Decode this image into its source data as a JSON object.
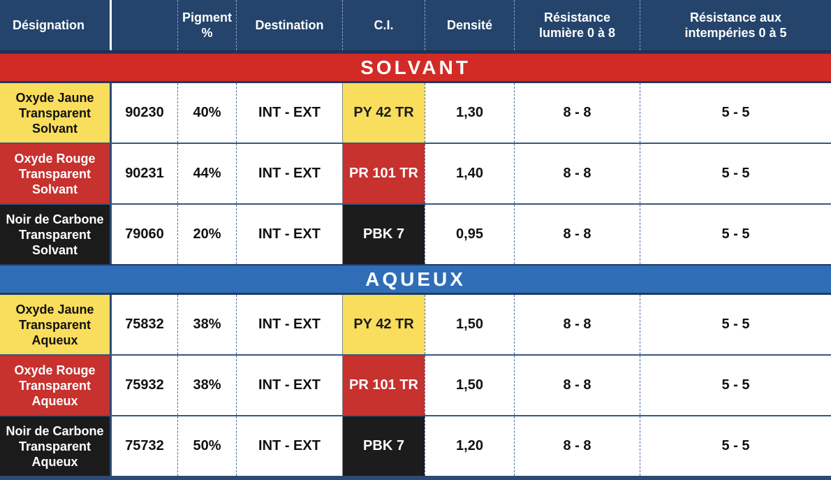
{
  "headers": {
    "designation": "Désignation",
    "code": "",
    "pigment": "Pigment\n%",
    "destination": "Destination",
    "ci": "C.I.",
    "densite": "Densité",
    "lumiere": "Résistance\nlumière 0 à 8",
    "intemperies": "Résistance aux\nintempéries 0 à 5"
  },
  "sections": [
    {
      "title": "SOLVANT",
      "color": "#d22b26",
      "rows": [
        {
          "name": "Oxyde Jaune\nTransparent\nSolvant",
          "tone": "yellow",
          "code": "90230",
          "pigment": "40%",
          "destination": "INT - EXT",
          "ci": "PY 42 TR",
          "densite": "1,30",
          "lumiere": "8 - 8",
          "intemperies": "5 - 5"
        },
        {
          "name": "Oxyde Rouge\nTransparent\nSolvant",
          "tone": "red",
          "code": "90231",
          "pigment": "44%",
          "destination": "INT - EXT",
          "ci": "PR 101 TR",
          "densite": "1,40",
          "lumiere": "8 - 8",
          "intemperies": "5 - 5"
        },
        {
          "name": "Noir de Carbone\nTransparent\nSolvant",
          "tone": "black",
          "code": "79060",
          "pigment": "20%",
          "destination": "INT - EXT",
          "ci": "PBK 7",
          "densite": "0,95",
          "lumiere": "8 - 8",
          "intemperies": "5 - 5"
        }
      ]
    },
    {
      "title": "AQUEUX",
      "color": "#2f6db6",
      "rows": [
        {
          "name": "Oxyde Jaune\nTransparent\nAqueux",
          "tone": "yellow",
          "code": "75832",
          "pigment": "38%",
          "destination": "INT - EXT",
          "ci": "PY 42 TR",
          "densite": "1,50",
          "lumiere": "8 - 8",
          "intemperies": "5 - 5"
        },
        {
          "name": "Oxyde Rouge\nTransparent\nAqueux",
          "tone": "red",
          "code": "75932",
          "pigment": "38%",
          "destination": "INT - EXT",
          "ci": "PR 101 TR",
          "densite": "1,50",
          "lumiere": "8 - 8",
          "intemperies": "5 - 5"
        },
        {
          "name": "Noir de Carbone\nTransparent\nAqueux",
          "tone": "black",
          "code": "75732",
          "pigment": "50%",
          "destination": "INT - EXT",
          "ci": "PBK 7",
          "densite": "1,20",
          "lumiere": "8 - 8",
          "intemperies": "5 - 5"
        }
      ]
    }
  ]
}
